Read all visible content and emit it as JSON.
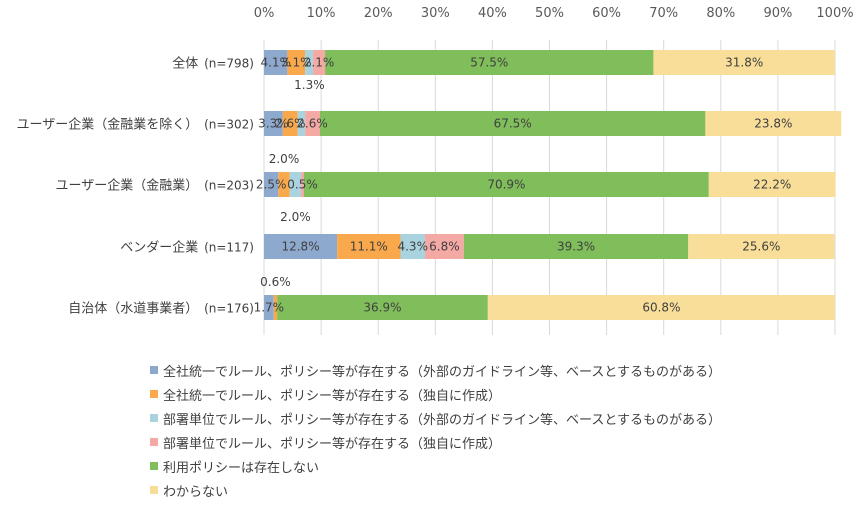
{
  "chart_data": {
    "type": "bar",
    "orientation": "horizontal",
    "stacked": true,
    "percent": true,
    "x_ticks": [
      "0%",
      "10%",
      "20%",
      "30%",
      "40%",
      "50%",
      "60%",
      "70%",
      "80%",
      "90%",
      "100%"
    ],
    "xlim": [
      0,
      100
    ],
    "categories": [
      {
        "name": "全体",
        "n": "(n=798)"
      },
      {
        "name": "ユーザー企業（金融業を除く）",
        "n": "(n=302)"
      },
      {
        "name": "ユーザー企業（金融業）",
        "n": "(n=203)"
      },
      {
        "name": "ベンダー企業",
        "n": "(n=117)"
      },
      {
        "name": "自治体（水道事業者）",
        "n": "(n=176)"
      }
    ],
    "series": [
      {
        "name": "全社統一でルール、ポリシー等が存在する（外部のガイドライン等、ベースとするものがある）",
        "color": "#8EA9CE",
        "values": [
          4.1,
          3.3,
          2.5,
          12.8,
          1.7
        ]
      },
      {
        "name": "全社統一でルール、ポリシー等が存在する（独自に作成）",
        "color": "#F9A94B",
        "values": [
          3.1,
          2.6,
          2.0,
          11.1,
          0.6
        ]
      },
      {
        "name": "部署単位でルール、ポリシー等が存在する（外部のガイドライン等、ベースとするものがある）",
        "color": "#A9D3DF",
        "values": [
          1.4,
          1.3,
          2.0,
          4.3,
          0
        ]
      },
      {
        "name": "部署単位でルール、ポリシー等が存在する（独自に作成）",
        "color": "#F5A9A5",
        "values": [
          2.1,
          2.6,
          0.5,
          6.8,
          0
        ]
      },
      {
        "name": "利用ポリシーは存在しない",
        "color": "#7FBE5A",
        "values": [
          57.5,
          67.5,
          70.9,
          39.3,
          36.9
        ]
      },
      {
        "name": "わからない",
        "color": "#F8DE98",
        "values": [
          31.8,
          23.8,
          22.2,
          25.6,
          60.8
        ]
      }
    ],
    "data_labels": [
      [
        "4.1%",
        "3.1%",
        "",
        "2.1%",
        "57.5%",
        "31.8%"
      ],
      [
        "3.3%",
        "2.6%",
        "1.3%",
        "2.6%",
        "67.5%",
        "23.8%"
      ],
      [
        "2.5%",
        "2.0%",
        "2.0%",
        "0.5%",
        "70.9%",
        "22.2%"
      ],
      [
        "12.8%",
        "11.1%",
        "4.3%",
        "6.8%",
        "39.3%",
        "25.6%"
      ],
      [
        "1.7%",
        "0.6%",
        "",
        "",
        "36.9%",
        "60.8%"
      ]
    ],
    "grid": true,
    "legend_position": "bottom"
  }
}
